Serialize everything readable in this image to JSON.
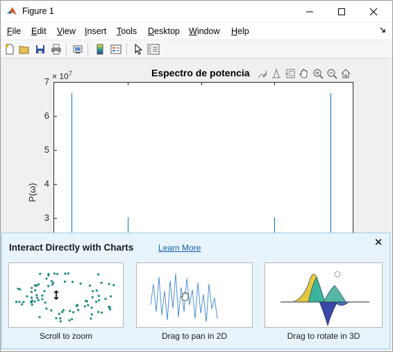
{
  "window": {
    "title": "Figure 1",
    "icon": "matlab-logo-icon",
    "controls": [
      "minimize-icon",
      "maximize-icon",
      "close-icon"
    ]
  },
  "menu": {
    "items": [
      {
        "label": "File"
      },
      {
        "label": "Edit"
      },
      {
        "label": "View"
      },
      {
        "label": "Insert"
      },
      {
        "label": "Tools"
      },
      {
        "label": "Desktop"
      },
      {
        "label": "Window"
      },
      {
        "label": "Help"
      }
    ],
    "dock_icon": "dock-arrow-icon"
  },
  "toolbar": {
    "buttons": [
      "new-figure-icon",
      "open-file-icon",
      "save-icon",
      "print-icon",
      "print-preview-icon",
      "colorbar-icon",
      "legend-icon",
      "edit-plot-icon",
      "property-inspector-icon"
    ]
  },
  "axes": {
    "title": "Espectro de potencia",
    "ylabel": "P(ω)",
    "exponent_base": "× 10",
    "exponent_power": "7",
    "toolbar_icons": [
      "brush-icon",
      "data-tips-icon",
      "export-icon",
      "pan-icon",
      "zoom-in-icon",
      "zoom-out-icon",
      "home-icon"
    ]
  },
  "chart_data": {
    "type": "line",
    "title": "Espectro de potencia",
    "xlabel": "",
    "ylabel": "P(ω)",
    "y_scale_note": "× 10^7",
    "yticks": [
      "3",
      "4",
      "5",
      "6",
      "7"
    ],
    "ylim_visible": [
      2.55,
      7
    ],
    "y_units": 10000000,
    "series": [
      {
        "x_fraction": 0.057,
        "peak": 6.7
      },
      {
        "x_fraction": 0.245,
        "peak": 3.05
      },
      {
        "x_fraction": 0.733,
        "peak": 3.05
      },
      {
        "x_fraction": 0.921,
        "peak": 6.7
      }
    ],
    "color": "#0072bd"
  },
  "overlay": {
    "title": "Interact Directly with Charts",
    "learn_more": "Learn More",
    "cards": [
      {
        "caption": "Scroll to zoom",
        "icon": "scroll-zoom-illustration"
      },
      {
        "caption": "Drag to pan in 2D",
        "icon": "pan-2d-illustration"
      },
      {
        "caption": "Drag to rotate in 3D",
        "icon": "rotate-3d-illustration"
      }
    ]
  }
}
